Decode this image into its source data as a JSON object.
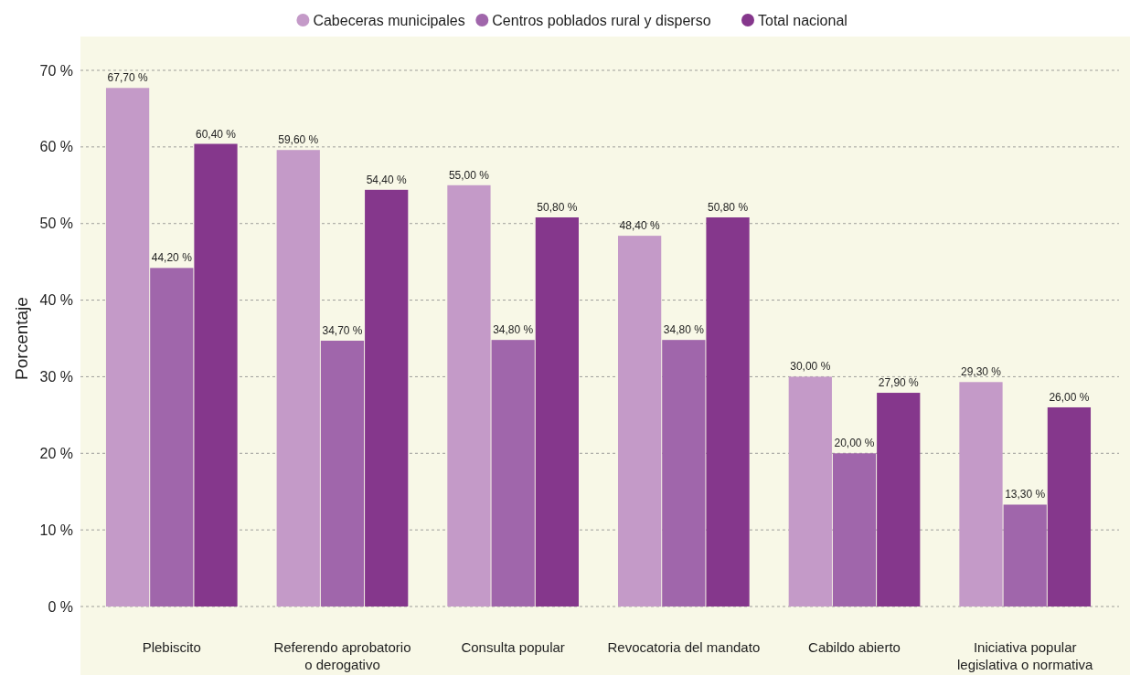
{
  "chart_data": {
    "type": "bar",
    "ylabel": "Porcentaje",
    "categories": [
      "Plebiscito",
      "Referendo aprobatorio o derogativo",
      "Consulta popular",
      "Revocatoria del mandato",
      "Cabildo abierto",
      "Iniciativa popular legislativa o normativa"
    ],
    "series": [
      {
        "name": "Cabeceras municipales",
        "color": "#c49ac8",
        "values": [
          67.7,
          59.6,
          55.0,
          48.4,
          30.0,
          29.3
        ],
        "value_labels": [
          "67,70 %",
          "59,60 %",
          "55,00 %",
          "48,40 %",
          "30,00 %",
          "29,30 %"
        ]
      },
      {
        "name": "Centros poblados rural y disperso",
        "color": "#a066ab",
        "values": [
          44.2,
          34.7,
          34.8,
          34.8,
          20.0,
          13.3
        ],
        "value_labels": [
          "44,20 %",
          "34,70 %",
          "34,80 %",
          "34,80 %",
          "20,00 %",
          "13,30 %"
        ]
      },
      {
        "name": "Total nacional",
        "color": "#85378c",
        "values": [
          60.4,
          54.4,
          50.8,
          50.8,
          27.9,
          26.0
        ],
        "value_labels": [
          "60,40 %",
          "54,40 %",
          "50,80 %",
          "50,80 %",
          "27,90 %",
          "26,00 %"
        ]
      }
    ],
    "ylim": [
      0,
      70
    ],
    "yticks": [
      {
        "value": 0,
        "label": "0 %"
      },
      {
        "value": 10,
        "label": "10 %"
      },
      {
        "value": 20,
        "label": "20 %"
      },
      {
        "value": 30,
        "label": "30 %"
      },
      {
        "value": 40,
        "label": "40 %"
      },
      {
        "value": 50,
        "label": "50 %"
      },
      {
        "value": 60,
        "label": "60 %"
      },
      {
        "value": 70,
        "label": "70 %"
      }
    ],
    "grid": "y",
    "legend": "top"
  }
}
